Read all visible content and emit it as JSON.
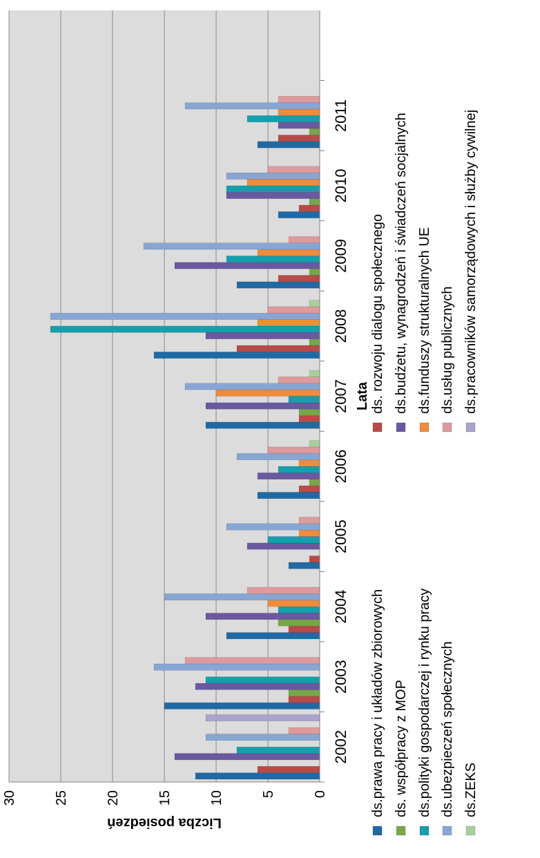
{
  "chart_data": {
    "type": "bar",
    "orientation": "horizontal",
    "xlabel": "Lata",
    "ylabel": "Liczba posiedzeń",
    "ylim": [
      0,
      30
    ],
    "yticks": [
      "0",
      "5",
      "10",
      "15",
      "20",
      "25",
      "30"
    ],
    "grid": true,
    "legend_position": "bottom",
    "categories": [
      "2002",
      "2003",
      "2004",
      "2005",
      "2006",
      "2007",
      "2008",
      "2009",
      "2010",
      "2011"
    ],
    "series": [
      {
        "name": "ds.prawa pracy i układów zbiorowych",
        "color": "#1f6aa5",
        "values": [
          12,
          15,
          9,
          3,
          6,
          11,
          16,
          8,
          4,
          6
        ]
      },
      {
        "name": "ds. rozwoju dialogu społecznego",
        "color": "#b84a47",
        "values": [
          6,
          3,
          3,
          1,
          2,
          2,
          8,
          4,
          2,
          4
        ]
      },
      {
        "name": "ds. współpracy z MOP",
        "color": "#77a846",
        "values": [
          0,
          3,
          4,
          0,
          1,
          2,
          1,
          1,
          1,
          1
        ]
      },
      {
        "name": "ds.budżetu, wynagrodzeń i świadczeń socjalnych",
        "color": "#6a58a0",
        "values": [
          14,
          12,
          11,
          7,
          6,
          11,
          11,
          14,
          9,
          4
        ]
      },
      {
        "name": "ds.polityki gospodarczej i rynku pracy",
        "color": "#13a0ad",
        "values": [
          8,
          11,
          4,
          5,
          4,
          3,
          26,
          9,
          9,
          7
        ]
      },
      {
        "name": "ds.funduszy strukturalnych UE",
        "color": "#f08c3c",
        "values": [
          0,
          0,
          5,
          2,
          2,
          10,
          6,
          6,
          7,
          4
        ]
      },
      {
        "name": "ds.ubezpieczeń społecznych",
        "color": "#88a6d3",
        "values": [
          11,
          16,
          15,
          9,
          8,
          13,
          26,
          17,
          9,
          13
        ]
      },
      {
        "name": "ds.usług publicznych",
        "color": "#df9a9c",
        "values": [
          3,
          13,
          7,
          2,
          5,
          4,
          5,
          3,
          5,
          4
        ]
      },
      {
        "name": "ds.ZEKS",
        "color": "#a9cf98",
        "values": [
          0,
          0,
          0,
          0,
          1,
          1,
          1,
          0,
          0,
          0
        ]
      },
      {
        "name": "ds.pracowników samorządowych i służby cywilnej",
        "color": "#aaa3cd",
        "values": [
          11,
          0,
          0,
          0,
          0,
          0,
          0,
          0,
          0,
          0
        ]
      }
    ],
    "legend_columns": [
      [
        "ds.prawa pracy i układów zbiorowych",
        "ds. współpracy z MOP",
        "ds.polityki gospodarczej i rynku pracy",
        "ds.ubezpieczeń społecznych",
        "ds.ZEKS"
      ],
      [
        "ds. rozwoju dialogu społecznego",
        "ds.budżetu, wynagrodzeń i świadczeń socjalnych",
        "ds.funduszy strukturalnych UE",
        "ds.usług publicznych",
        "ds.pracowników samorządowych i służby cywilnej"
      ]
    ],
    "colors": {
      "plot_background": "#dcdcdc",
      "gridline": "#888888",
      "axis": "#808080"
    }
  }
}
